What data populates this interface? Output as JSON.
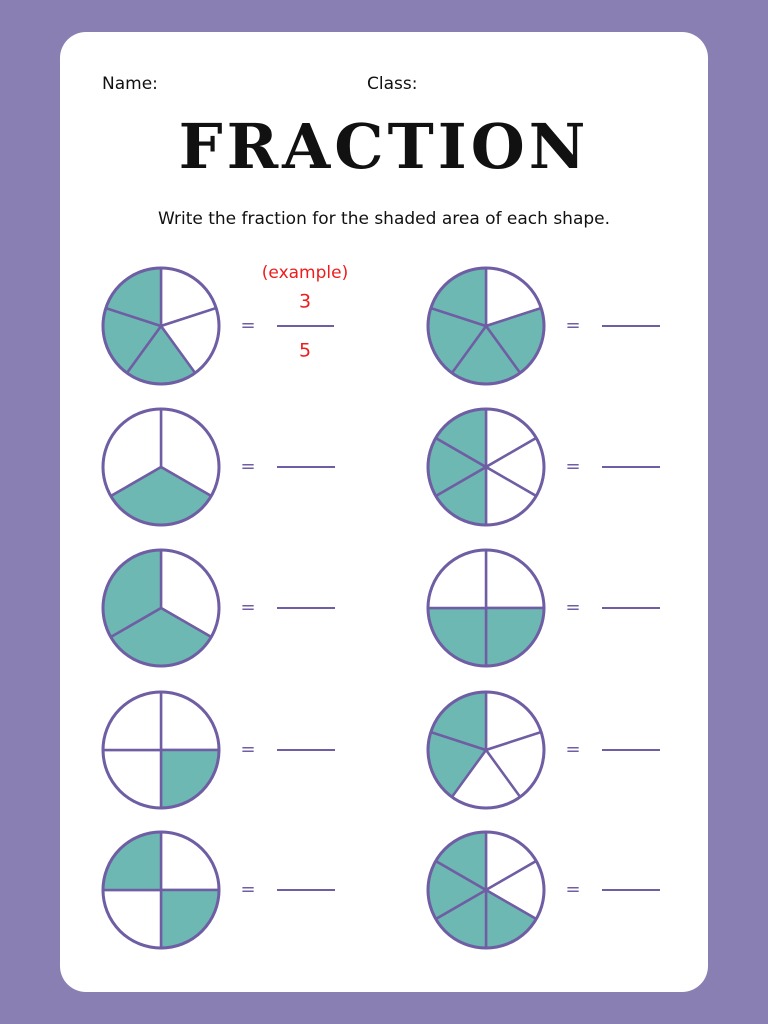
{
  "header": {
    "name_label": "Name:",
    "class_label": "Class:",
    "title": "FRACTION",
    "instruction": "Write the fraction for the shaded area of each shape."
  },
  "items": [
    {
      "equals": "=",
      "example_label": "(example)",
      "numerator": "3",
      "denominator": "5"
    },
    {
      "equals": "="
    },
    {
      "equals": "="
    },
    {
      "equals": "="
    },
    {
      "equals": "="
    },
    {
      "equals": "="
    },
    {
      "equals": "="
    },
    {
      "equals": "="
    },
    {
      "equals": "="
    },
    {
      "equals": "="
    }
  ]
}
